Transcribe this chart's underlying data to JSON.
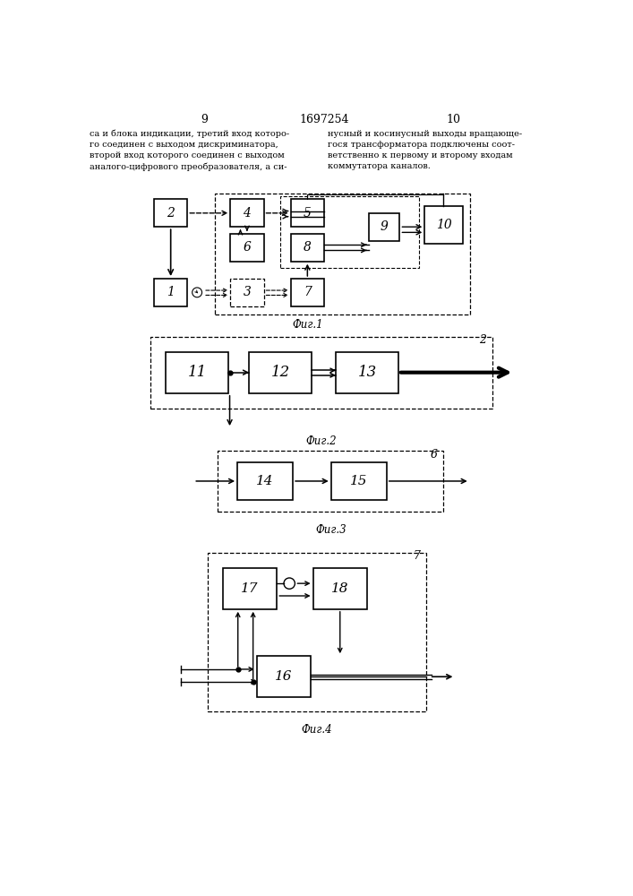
{
  "page_num_left": "9",
  "page_num_center": "1697254",
  "page_num_right": "10",
  "text_col1": "са и блока индикации, третий вход которо-\nго соединен с выходом дискриминатора,\nвторой вход которого соединен с выходом\nаналого-цифрового преобразователя, а си-",
  "text_col2": "нусный и косинусный выходы вращающе-\nгося трансформатора подключены соот-\nветственно к первому и второму входам\nкоммутатора каналов.",
  "fig1_caption": "Фиг.1",
  "fig2_caption": "Фиг.2",
  "fig3_caption": "Фиг.3",
  "fig4_caption": "Фиг.4",
  "bg_color": "#ffffff",
  "box_color": "#000000",
  "line_color": "#000000"
}
